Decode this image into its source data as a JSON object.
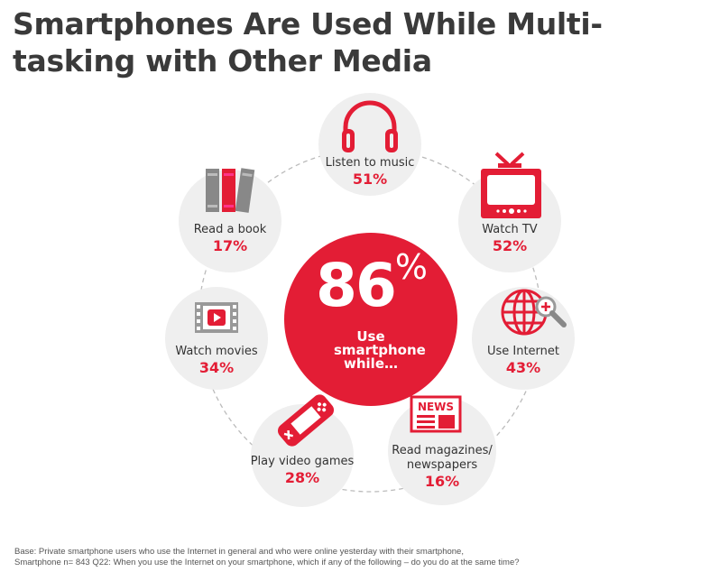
{
  "title": "Smartphones Are Used While Multi-tasking with Other Media",
  "center": {
    "value": "86",
    "unit": "%",
    "label": "Use smartphone while…"
  },
  "activities": [
    {
      "label": "Listen to music",
      "percent": "51%",
      "icon": "headphones-icon"
    },
    {
      "label": "Watch TV",
      "percent": "52%",
      "icon": "tv-icon"
    },
    {
      "label": "Use Internet",
      "percent": "43%",
      "icon": "globe-search-icon"
    },
    {
      "label": "Read magazines/ newspapers",
      "percent": "16%",
      "icon": "newspaper-icon"
    },
    {
      "label": "Play video games",
      "percent": "28%",
      "icon": "gamepad-icon"
    },
    {
      "label": "Watch movies",
      "percent": "34%",
      "icon": "film-icon"
    },
    {
      "label": "Read a book",
      "percent": "17%",
      "icon": "books-icon"
    }
  ],
  "footnote": {
    "line1": "Base:   Private smartphone users who use the Internet in general and who were online yesterday with their smartphone,",
    "line2": "Smartphone n= 843 Q22: When you use the Internet on your smartphone, which if any of the following – do you do at the same time?"
  },
  "colors": {
    "accent": "#e31d35",
    "bubble": "#efefef",
    "text": "#3a3a3a"
  }
}
